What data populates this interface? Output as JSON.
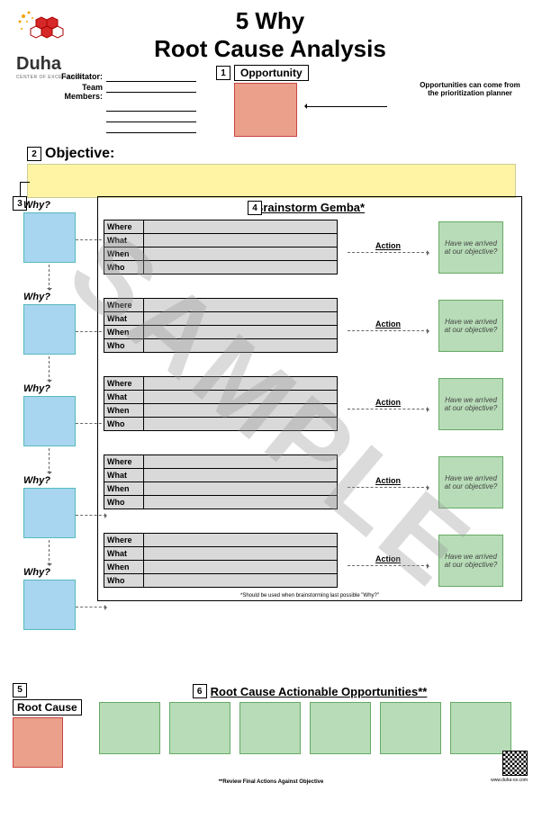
{
  "watermark": "SAMPLE",
  "brand": {
    "name": "Duha",
    "sub": "CENTER OF EXCELLENCE"
  },
  "title": {
    "l1": "5 Why",
    "l2": "Root Cause Analysis"
  },
  "facil": {
    "f_lbl": "Facilitator:",
    "t_lbl": "Team Members:"
  },
  "opp": {
    "num": "1",
    "label": "Opportunity",
    "note": "Opportunities can come from the prioritization planner"
  },
  "obj": {
    "num": "2",
    "label": "Objective:"
  },
  "why": {
    "num": "3",
    "label": "Why?",
    "count": 5
  },
  "gemba": {
    "num": "4",
    "title": "Brainstorm Gemba*",
    "rows": [
      "Where",
      "What",
      "When",
      "Who"
    ],
    "action": "Action",
    "objq": "Have we arrived at our objective?",
    "foot": "*Should be used when brainstorming last possible \"Why?\""
  },
  "root": {
    "num": "5",
    "label": "Root Cause"
  },
  "actionable": {
    "num": "6",
    "label": "Root Cause Actionable Opportunities**",
    "count": 6
  },
  "foot": "**Review Final Actions Against Objective",
  "url": "www.duha-ce.com",
  "colors": {
    "opp_fill": "#eaa08a",
    "obj_fill": "#fff4a3",
    "why_fill": "#a8d5ef",
    "green_fill": "#b7dcb7",
    "tbl_fill": "#d9d9d9"
  }
}
